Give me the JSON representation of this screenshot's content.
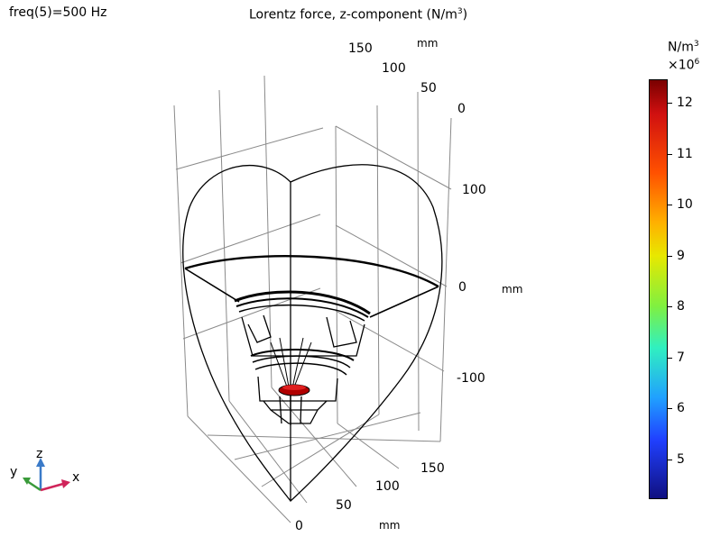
{
  "header": {
    "frequency_label": "freq(5)=500 Hz",
    "plot_title_prefix": "Lorentz force, z-component (N/m",
    "plot_title_sup": "3",
    "plot_title_suffix": ")"
  },
  "axes": {
    "y_axis_ticks": [
      "150",
      "100",
      "50",
      "0"
    ],
    "y_axis_unit": "mm",
    "z_axis_ticks": [
      "100",
      "0",
      "-100"
    ],
    "z_axis_unit": "mm",
    "x_axis_ticks": [
      "150",
      "100",
      "50",
      "0"
    ],
    "x_axis_unit": "mm"
  },
  "colorbar": {
    "unit_base": "N/m",
    "unit_sup": "3",
    "scale_base": "×10",
    "scale_sup": "6",
    "ticks": [
      "12",
      "11",
      "10",
      "9",
      "8",
      "7",
      "6",
      "5"
    ],
    "colors": [
      "#7a0000",
      "#d01010",
      "#ff5000",
      "#ffb000",
      "#e8e800",
      "#80f040",
      "#30f0c0",
      "#20a0ff",
      "#2040ff",
      "#101080"
    ]
  },
  "triad": {
    "x_label": "x",
    "y_label": "y",
    "z_label": "z",
    "x_color": "#d0245a",
    "y_color": "#3a9a3a",
    "z_color": "#3a7ac8"
  }
}
